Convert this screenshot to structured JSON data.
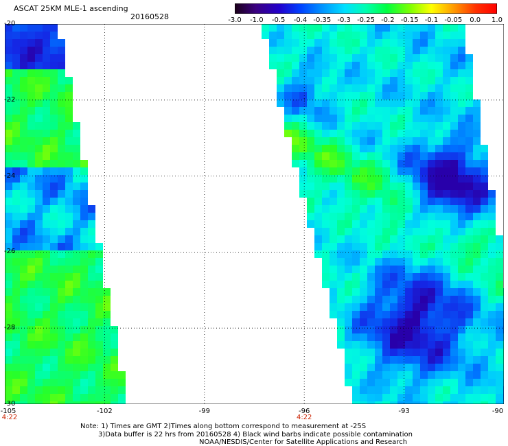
{
  "header": {
    "title": "ASCAT 25KM MLE-1 ascending",
    "date": "20160528"
  },
  "colorbar": {
    "tick_labels": [
      "-3.0",
      "-1.0",
      "-0.5",
      "-0.4",
      "-0.35",
      "-0.3",
      "-0.25",
      "-0.2",
      "-0.15",
      "-0.1",
      "-0.05",
      "0.0",
      "1.0"
    ],
    "colors": [
      "#1a0018",
      "#3a0080",
      "#2200cc",
      "#0040ff",
      "#0090ff",
      "#00e0ff",
      "#00ffb0",
      "#00ff40",
      "#80ff00",
      "#ffff00",
      "#ffa000",
      "#ff3000",
      "#ff0000"
    ]
  },
  "axes": {
    "lat_labels": [
      "-20",
      "-22",
      "-24",
      "-26",
      "-28",
      "-30"
    ],
    "lon_labels": [
      "-105",
      "-102",
      "-99",
      "-96",
      "-93",
      "-90"
    ],
    "lat_range": [
      -30,
      -20
    ],
    "lon_range": [
      -105,
      -90
    ]
  },
  "time_labels": [
    {
      "text": "4:22",
      "lon": -105
    },
    {
      "text": "4:22",
      "lon": -96
    }
  ],
  "notes": {
    "line1": "Note: 1) Times are GMT 2)Times along bottom correspond to measurement at -25S",
    "line2": "3)Data buffer is 22 hrs from 20160528 4) Black wind barbs indicate possible contamination",
    "line3": "NOAA/NESDIS/Center for Satellite Applications and Research"
  }
}
